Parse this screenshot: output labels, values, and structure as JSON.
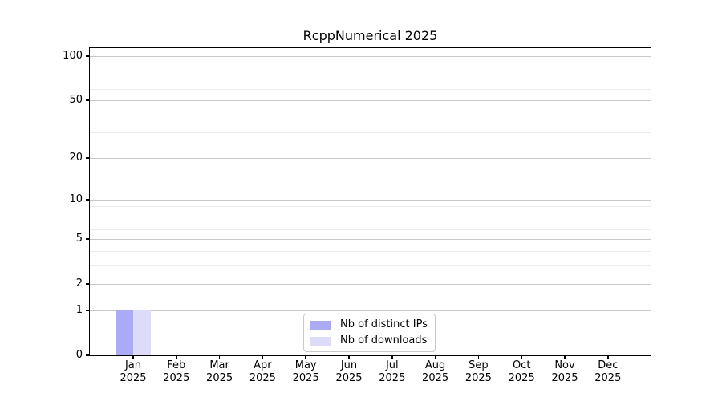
{
  "figure": {
    "background": "#ffffff"
  },
  "chart_data": {
    "type": "bar",
    "title": "RcppNumerical 2025",
    "xlabel": "",
    "ylabel": "",
    "categories": [
      "Jan 2025",
      "Feb 2025",
      "Mar 2025",
      "Apr 2025",
      "May 2025",
      "Jun 2025",
      "Jul 2025",
      "Aug 2025",
      "Sep 2025",
      "Oct 2025",
      "Nov 2025",
      "Dec 2025"
    ],
    "series": [
      {
        "name": "Nb of distinct IPs",
        "color": "#ababf5",
        "values": [
          1,
          0,
          0,
          0,
          0,
          0,
          0,
          0,
          0,
          0,
          0,
          0
        ]
      },
      {
        "name": "Nb of downloads",
        "color": "#dcdcf9",
        "values": [
          1,
          0,
          0,
          0,
          0,
          0,
          0,
          0,
          0,
          0,
          0,
          0
        ]
      }
    ],
    "yscale": "log1p",
    "ylim": [
      0,
      113
    ],
    "ytick_values": [
      0,
      1,
      2,
      5,
      10,
      20,
      50,
      100
    ],
    "ytick_labels": [
      "0",
      "1",
      "2",
      "5",
      "10",
      "20",
      "50",
      "100"
    ],
    "yminor_values": [
      3,
      4,
      6,
      7,
      8,
      9,
      30,
      40,
      60,
      70,
      80,
      90
    ],
    "grid": "on",
    "legend_position": "inside bottom-center"
  },
  "colors": {
    "spine": "#000000",
    "major_grid": "#c9c9c9",
    "minor_grid": "#ececec",
    "text": "#000000",
    "legend_border": "#c9c9c9",
    "legend_background": "#ffffff"
  }
}
